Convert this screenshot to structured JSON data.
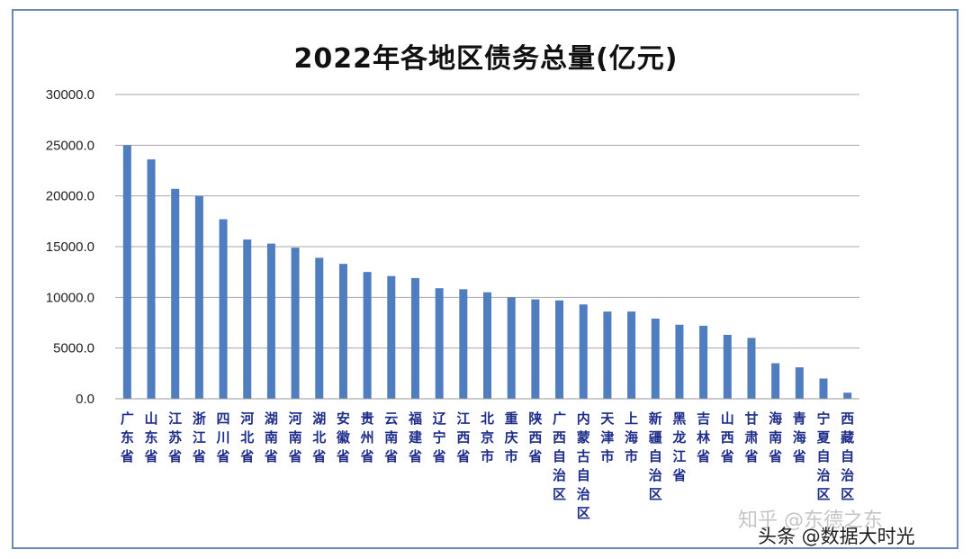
{
  "chart_data": {
    "type": "bar",
    "title": "2022年各地区债务总量(亿元)",
    "xlabel": "",
    "ylabel": "",
    "ylim": [
      0,
      30000
    ],
    "yticks": [
      "30000.0",
      "25000.0",
      "20000.0",
      "15000.0",
      "10000.0",
      "5000.0",
      "0.0"
    ],
    "grid": true,
    "legend": "none",
    "bar_color": "#4f7dbf",
    "categories": [
      "广东省",
      "山东省",
      "江苏省",
      "浙江省",
      "四川省",
      "河北省",
      "湖南省",
      "河南省",
      "湖北省",
      "安徽省",
      "贵州省",
      "云南省",
      "福建省",
      "辽宁省",
      "江西省",
      "北京市",
      "重庆市",
      "陕西省",
      "广西自治区",
      "内蒙古自治区",
      "天津市",
      "上海市",
      "新疆自治区",
      "黑龙江省",
      "吉林省",
      "山西省",
      "甘肃省",
      "海南省",
      "青海省",
      "宁夏自治区",
      "西藏自治区"
    ],
    "values": [
      25000,
      23600,
      20700,
      20000,
      17700,
      15700,
      15300,
      14900,
      13900,
      13300,
      12500,
      12100,
      11900,
      10900,
      10800,
      10500,
      10000,
      9800,
      9700,
      9300,
      8600,
      8600,
      7900,
      7300,
      7200,
      6300,
      6000,
      3500,
      3100,
      2000,
      600
    ]
  },
  "watermarks": {
    "zhihu": "知乎 @东德之东",
    "toutiao": "头条 @数据大时光"
  }
}
